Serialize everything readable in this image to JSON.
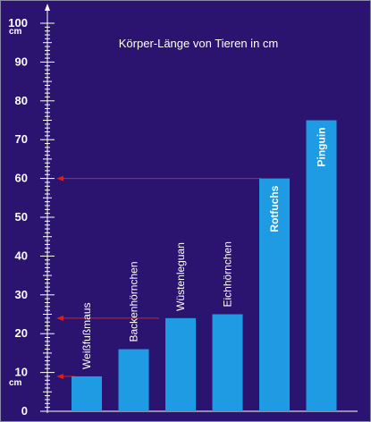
{
  "chart_data": {
    "type": "bar",
    "title": "Körper-Länge von Tieren in cm",
    "categories": [
      "Weißfußmaus",
      "Backenhörnchen",
      "Wüstenleguan",
      "Eichhörnchen",
      "Rotfuchs",
      "Pinguin"
    ],
    "values": [
      9,
      16,
      24,
      25,
      60,
      75
    ],
    "y_tick_labels": [
      "0",
      "10",
      "20",
      "30",
      "40",
      "50",
      "60",
      "70",
      "80",
      "90",
      "100"
    ],
    "y_unit_top": "cm",
    "y_unit_bottom": "cm",
    "ylim": [
      0,
      100
    ],
    "grid": false,
    "arrows": [
      9,
      24,
      60
    ],
    "colors": {
      "background": "#2a1470",
      "bar": "#1e9be2",
      "axis": "#ffffff",
      "arrow": "#d62020"
    }
  }
}
